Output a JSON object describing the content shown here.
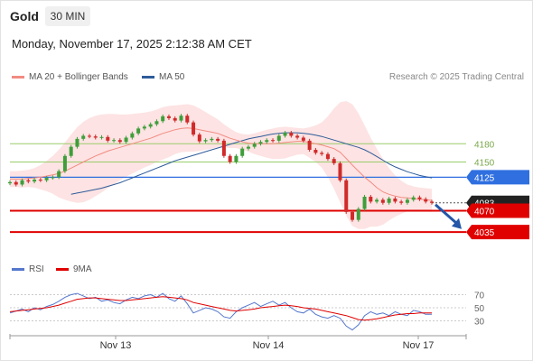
{
  "header": {
    "instrument": "Gold",
    "timeframe": "30 MIN",
    "timestamp": "Monday, November 17, 2025 2:12:38 AM CET"
  },
  "legend": {
    "ma20_label": "MA 20 + Bollinger Bands",
    "ma50_label": "MA 50",
    "ma20_color": "#f28b82",
    "ma50_color": "#2e5c9a",
    "copyright": "Research © 2025 Trading Central"
  },
  "rsi_legend": {
    "rsi_label": "RSI",
    "ma9_label": "9MA",
    "rsi_color": "#5577cc",
    "ma9_color": "#e00000"
  },
  "chart_data": {
    "type": "candlestick",
    "x_labels": [
      "Nov 13",
      "Nov 14",
      "Nov 17"
    ],
    "y_range": [
      4013,
      4250
    ],
    "levels": [
      {
        "label": "4180",
        "value": 4180,
        "kind": "target",
        "color": "#9acd6a"
      },
      {
        "label": "4150",
        "value": 4150,
        "kind": "target",
        "color": "#9acd6a"
      },
      {
        "label": "4125",
        "value": 4125,
        "kind": "pivot",
        "color": "#2f6fe0"
      },
      {
        "label": "4083",
        "value": 4083,
        "kind": "last-price",
        "color": "#222222"
      },
      {
        "label": "4070",
        "value": 4070,
        "kind": "support",
        "color": "#e00000"
      },
      {
        "label": "4035",
        "value": 4035,
        "kind": "support",
        "color": "#e00000"
      }
    ],
    "close_path": [
      4117,
      4113,
      4120,
      4118,
      4121,
      4120,
      4124,
      4125,
      4135,
      4160,
      4175,
      4188,
      4193,
      4192,
      4190,
      4191,
      4185,
      4186,
      4183,
      4190,
      4197,
      4205,
      4208,
      4212,
      4217,
      4225,
      4222,
      4218,
      4226,
      4215,
      4195,
      4184,
      4186,
      4188,
      4185,
      4160,
      4150,
      4160,
      4172,
      4175,
      4180,
      4183,
      4186,
      4185,
      4193,
      4198,
      4193,
      4190,
      4185,
      4170,
      4165,
      4163,
      4155,
      4148,
      4120,
      4068,
      4055,
      4073,
      4093,
      4085,
      4088,
      4083,
      4090,
      4085,
      4083,
      4088,
      4092,
      4089,
      4085,
      4083
    ],
    "ma20": [
      4122,
      4122,
      4122,
      4123,
      4124,
      4125,
      4127,
      4129,
      4131,
      4135,
      4140,
      4145,
      4150,
      4155,
      4160,
      4164,
      4168,
      4171,
      4174,
      4177,
      4180,
      4183,
      4186,
      4189,
      4193,
      4197,
      4200,
      4203,
      4205,
      4206,
      4205,
      4203,
      4201,
      4199,
      4197,
      4193,
      4189,
      4186,
      4183,
      4181,
      4180,
      4180,
      4180,
      4180,
      4181,
      4182,
      4183,
      4184,
      4184,
      4182,
      4180,
      4178,
      4175,
      4172,
      4166,
      4156,
      4145,
      4135,
      4125,
      4117,
      4108,
      4101,
      4097,
      4094,
      4092,
      4091,
      4090,
      4089,
      4088,
      4087
    ],
    "bollinger_upper": [
      4135,
      4135,
      4136,
      4137,
      4140,
      4145,
      4152,
      4160,
      4170,
      4182,
      4195,
      4207,
      4216,
      4222,
      4226,
      4228,
      4229,
      4229,
      4228,
      4228,
      4229,
      4230,
      4231,
      4233,
      4236,
      4240,
      4242,
      4243,
      4244,
      4245,
      4243,
      4238,
      4232,
      4226,
      4220,
      4212,
      4205,
      4199,
      4196,
      4195,
      4197,
      4200,
      4203,
      4205,
      4207,
      4208,
      4207,
      4206,
      4205,
      4207,
      4210,
      4215,
      4225,
      4238,
      4248,
      4250,
      4245,
      4230,
      4210,
      4190,
      4172,
      4155,
      4140,
      4128,
      4119,
      4113,
      4110,
      4108,
      4107,
      4106
    ],
    "bollinger_lower": [
      4109,
      4109,
      4108,
      4109,
      4108,
      4105,
      4102,
      4098,
      4092,
      4088,
      4085,
      4083,
      4084,
      4088,
      4094,
      4100,
      4107,
      4113,
      4120,
      4126,
      4131,
      4136,
      4141,
      4145,
      4150,
      4154,
      4158,
      4163,
      4166,
      4167,
      4167,
      4168,
      4170,
      4172,
      4174,
      4174,
      4173,
      4173,
      4170,
      4167,
      4163,
      4160,
      4157,
      4155,
      4155,
      4156,
      4159,
      4162,
      4163,
      4157,
      4150,
      4141,
      4125,
      4106,
      4084,
      4062,
      4045,
      4040,
      4040,
      4044,
      4044,
      4047,
      4054,
      4060,
      4065,
      4069,
      4070,
      4070,
      4069,
      4068
    ],
    "ma50": [
      4097,
      4099,
      4101,
      4103,
      4105,
      4107,
      4110,
      4113,
      4116,
      4120,
      4124,
      4128,
      4132,
      4136,
      4140,
      4144,
      4148,
      4152,
      4155,
      4158,
      4161,
      4164,
      4167,
      4170,
      4173,
      4176,
      4179,
      4182,
      4185,
      4188,
      4190,
      4192,
      4194,
      4196,
      4197,
      4198,
      4198,
      4198,
      4197,
      4196,
      4194,
      4192,
      4189,
      4186,
      4183,
      4180,
      4177,
      4174,
      4170,
      4165,
      4159,
      4153,
      4147,
      4142,
      4138,
      4134,
      4131,
      4128,
      4126,
      4124
    ]
  },
  "rsi_chart": {
    "type": "line",
    "y_ticks": [
      "70",
      "50",
      "30"
    ],
    "y_range": [
      10,
      90
    ],
    "rsi": [
      42,
      45,
      48,
      44,
      50,
      47,
      52,
      55,
      60,
      66,
      70,
      72,
      68,
      64,
      66,
      60,
      62,
      58,
      56,
      62,
      66,
      64,
      68,
      70,
      66,
      72,
      64,
      60,
      68,
      56,
      42,
      46,
      50,
      48,
      44,
      36,
      34,
      44,
      50,
      54,
      58,
      52,
      56,
      60,
      54,
      58,
      50,
      44,
      42,
      48,
      40,
      36,
      34,
      38,
      34,
      22,
      16,
      24,
      38,
      44,
      40,
      42,
      38,
      44,
      40,
      38,
      46,
      44,
      40,
      40
    ],
    "ma9": [
      44,
      45,
      46,
      47,
      48,
      49,
      50,
      52,
      54,
      57,
      60,
      63,
      64,
      65,
      65,
      64,
      63,
      62,
      61,
      61,
      62,
      63,
      64,
      65,
      66,
      67,
      66,
      65,
      64,
      62,
      58,
      56,
      54,
      52,
      50,
      48,
      46,
      45,
      46,
      47,
      48,
      50,
      51,
      52,
      53,
      54,
      53,
      52,
      50,
      49,
      48,
      46,
      44,
      42,
      40,
      38,
      35,
      32,
      31,
      32,
      33,
      35,
      37,
      39,
      40,
      41,
      41,
      42,
      42,
      42
    ]
  }
}
